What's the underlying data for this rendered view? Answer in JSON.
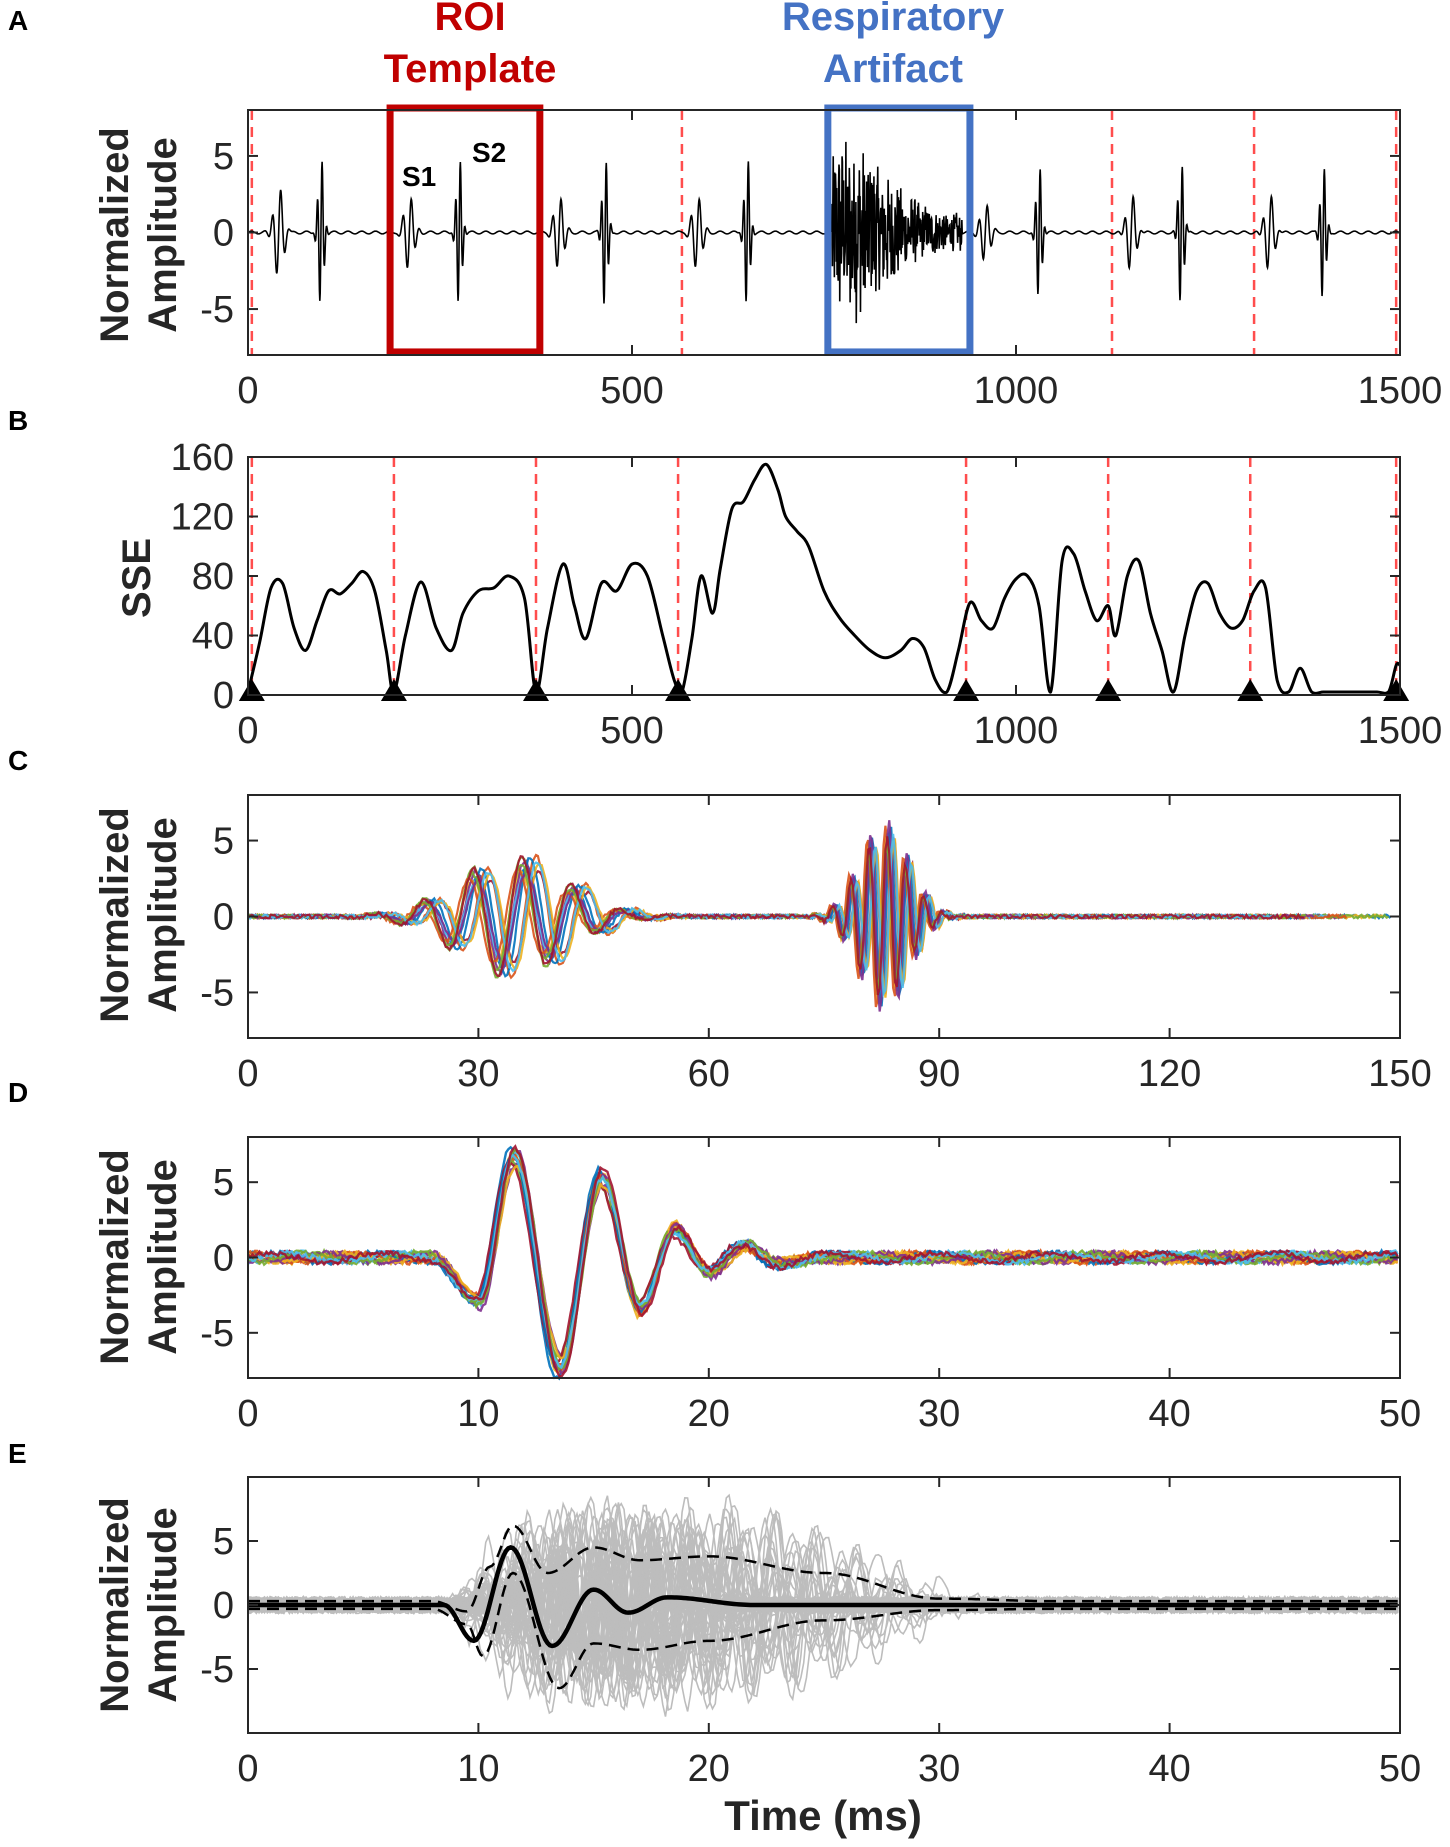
{
  "colors": {
    "roi": "#c00000",
    "respiratory": "#4472c4",
    "boundary": "#ff4d4d",
    "trace": "#000000",
    "ensemble": "#bdbdbd",
    "series": [
      "#0072bd",
      "#d95319",
      "#edb120",
      "#7e2f8e",
      "#77ac30",
      "#4dbeee",
      "#a2142f"
    ]
  },
  "chart_data": [
    {
      "panel": "A",
      "type": "line",
      "ylabel_line1": "Normalized",
      "ylabel_line2": "Amplitude",
      "xlim": [
        0,
        1500
      ],
      "ylim": [
        -8,
        8
      ],
      "xticks": [
        0,
        500,
        1000,
        1500
      ],
      "yticks": [
        -5,
        0,
        5
      ],
      "beats": [
        {
          "s1": 40,
          "s2": 95,
          "amp1": 3.0,
          "amp2": 5.0
        },
        {
          "s1": 210,
          "s2": 275,
          "amp1": 2.5,
          "amp2": 5.0
        },
        {
          "s1": 405,
          "s2": 465,
          "amp1": 2.5,
          "amp2": 5.0
        },
        {
          "s1": 585,
          "s2": 650,
          "amp1": 2.5,
          "amp2": 5.0
        },
        {
          "s1": 960,
          "s2": 1030,
          "amp1": 2.0,
          "amp2": 4.5
        },
        {
          "s1": 1150,
          "s2": 1215,
          "amp1": 2.5,
          "amp2": 4.8
        },
        {
          "s1": 1330,
          "s2": 1400,
          "amp1": 2.5,
          "amp2": 4.5
        }
      ],
      "respiratory_noise": {
        "start": 760,
        "end": 930,
        "amp": 5.0
      },
      "boundaries": [
        5,
        565,
        1125,
        1310,
        1495
      ],
      "roi_box": {
        "x0": 185,
        "x1": 380,
        "y0": -7.8,
        "y1": 8
      },
      "resp_box": {
        "x0": 755,
        "x1": 940,
        "y0": -7.8,
        "y1": 8
      },
      "roi_title_line1": "ROI",
      "roi_title_line2": "Template",
      "resp_title_line1": "Respiratory",
      "resp_title_line2": "Artifact",
      "s1_label": "S1",
      "s2_label": "S2"
    },
    {
      "panel": "B",
      "type": "line",
      "ylabel": "SSE",
      "xlim": [
        0,
        1500
      ],
      "ylim": [
        0,
        160
      ],
      "xticks": [
        0,
        500,
        1000,
        1500
      ],
      "yticks": [
        0,
        40,
        80,
        120,
        160
      ],
      "x": [
        0,
        15,
        30,
        45,
        60,
        75,
        90,
        105,
        120,
        135,
        150,
        165,
        180,
        190,
        205,
        225,
        245,
        265,
        280,
        300,
        320,
        340,
        360,
        375,
        390,
        410,
        425,
        440,
        460,
        480,
        500,
        520,
        540,
        555,
        565,
        578,
        590,
        605,
        615,
        630,
        645,
        660,
        675,
        690,
        700,
        715,
        730,
        750,
        770,
        790,
        810,
        830,
        850,
        865,
        880,
        895,
        910,
        925,
        940,
        955,
        970,
        985,
        1000,
        1015,
        1030,
        1045,
        1060,
        1075,
        1090,
        1105,
        1120,
        1130,
        1145,
        1160,
        1175,
        1190,
        1205,
        1220,
        1235,
        1250,
        1265,
        1280,
        1295,
        1310,
        1325,
        1340,
        1355,
        1370,
        1385,
        1400,
        1415,
        1430,
        1450,
        1470,
        1485,
        1495,
        1500
      ],
      "y": [
        2,
        35,
        72,
        75,
        45,
        30,
        50,
        70,
        68,
        75,
        83,
        70,
        30,
        2,
        40,
        76,
        45,
        30,
        55,
        70,
        72,
        80,
        65,
        2,
        45,
        88,
        60,
        38,
        75,
        70,
        88,
        80,
        40,
        10,
        2,
        38,
        80,
        55,
        85,
        125,
        130,
        145,
        155,
        138,
        120,
        110,
        100,
        70,
        52,
        40,
        30,
        25,
        30,
        38,
        32,
        10,
        2,
        30,
        62,
        50,
        45,
        65,
        78,
        80,
        60,
        2,
        90,
        95,
        70,
        50,
        60,
        40,
        80,
        90,
        55,
        30,
        2,
        40,
        70,
        75,
        55,
        45,
        50,
        70,
        72,
        10,
        2,
        18,
        2,
        2,
        2,
        2,
        2,
        2,
        2,
        20,
        20
      ],
      "boundaries": [
        5,
        190,
        375,
        560,
        935,
        1120,
        1305,
        1495
      ],
      "markers": [
        5,
        190,
        375,
        560,
        935,
        1120,
        1305,
        1495
      ]
    },
    {
      "panel": "C",
      "type": "line",
      "ylabel_line1": "Normalized",
      "ylabel_line2": "Amplitude",
      "xlim": [
        0,
        150
      ],
      "ylim": [
        -8,
        8
      ],
      "xticks": [
        0,
        30,
        60,
        90,
        120,
        150
      ],
      "yticks": [
        -5,
        0,
        5
      ],
      "n_series": 14,
      "s1_center": 35,
      "s1_amp": 3.8,
      "s2_center": 83,
      "s2_amp": 6.5
    },
    {
      "panel": "D",
      "type": "line",
      "ylabel_line1": "Normalized",
      "ylabel_line2": "Amplitude",
      "xlim": [
        0,
        50
      ],
      "ylim": [
        -8,
        8
      ],
      "xticks": [
        0,
        10,
        20,
        30,
        40,
        50
      ],
      "yticks": [
        -5,
        0,
        5
      ],
      "n_series": 14,
      "peaks": [
        {
          "x": 10,
          "y": -3
        },
        {
          "x": 11.5,
          "y": 7
        },
        {
          "x": 13.5,
          "y": -7.5
        },
        {
          "x": 15.3,
          "y": 5.5
        },
        {
          "x": 17,
          "y": -3.5
        },
        {
          "x": 18.5,
          "y": 2
        },
        {
          "x": 20,
          "y": -1
        },
        {
          "x": 21.5,
          "y": 0.8
        },
        {
          "x": 23,
          "y": -0.4
        }
      ]
    },
    {
      "panel": "E",
      "type": "line",
      "ylabel_line1": "Normalized",
      "ylabel_line2": "Amplitude",
      "xlabel": "Time (ms)",
      "xlim": [
        0,
        50
      ],
      "ylim": [
        -10,
        10
      ],
      "xticks": [
        0,
        10,
        20,
        30,
        40,
        50
      ],
      "yticks": [
        -5,
        0,
        5
      ],
      "mean_peaks": [
        {
          "x": 9.8,
          "y": -2.8
        },
        {
          "x": 11.4,
          "y": 4.5
        },
        {
          "x": 13.2,
          "y": -3.2
        },
        {
          "x": 15,
          "y": 1.2
        },
        {
          "x": 16.5,
          "y": -0.6
        },
        {
          "x": 18.2,
          "y": 0.6
        }
      ],
      "upper_band": {
        "x": [
          0,
          8,
          9.5,
          10.5,
          11.5,
          13,
          15,
          17,
          20,
          25,
          30,
          35,
          50
        ],
        "y": [
          0.3,
          0.3,
          -0.5,
          3,
          6.2,
          2.5,
          4.5,
          3.5,
          3.8,
          2.5,
          0.5,
          0.3,
          0.3
        ]
      },
      "lower_band": {
        "x": [
          0,
          8,
          9.5,
          10.2,
          11.5,
          13.5,
          15,
          17,
          20,
          25,
          30,
          35,
          50
        ],
        "y": [
          -0.3,
          -0.3,
          -1.5,
          -4,
          2.5,
          -6.5,
          -3,
          -3.5,
          -2.8,
          -1.2,
          -0.4,
          -0.3,
          -0.3
        ]
      },
      "n_ensemble": 60
    }
  ],
  "panel_labels": [
    "A",
    "B",
    "C",
    "D",
    "E"
  ]
}
